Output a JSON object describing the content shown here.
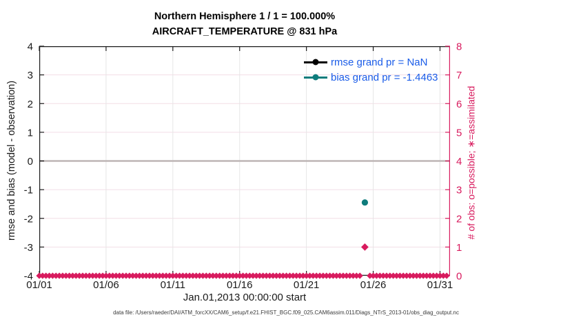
{
  "title": {
    "line1": "Northern Hemisphere 1 / 1 = 100.000%",
    "line2": "AIRCRAFT_TEMPERATURE @ 831 hPa"
  },
  "legend": {
    "text_color": "#1a5ce8",
    "items": [
      {
        "name": "rmse",
        "label": "rmse grand pr = NaN",
        "color": "#000000"
      },
      {
        "name": "bias",
        "label": "bias grand pr = -1.4463",
        "color": "#0e7c7c"
      }
    ]
  },
  "footer": {
    "text": "data file: /Users/raeder/DAI/ATM_forcXX/CAM6_setup/f.e21.FHIST_BGC.f09_025.CAM6assim.011/Diags_NTrS_2013-01/obs_diag_output.nc"
  },
  "chart_data": {
    "type": "line",
    "title": "Northern Hemisphere 1 / 1 = 100.000%",
    "subtitle": "AIRCRAFT_TEMPERATURE @ 831 hPa",
    "xlabel": "Jan.01,2013 00:00:00 start",
    "x_axis": {
      "tick_days": [
        0,
        5,
        10,
        15,
        20,
        25,
        30
      ],
      "tick_labels": [
        "01/01",
        "01/06",
        "01/11",
        "01/16",
        "01/21",
        "01/26",
        "01/31"
      ],
      "range_days": [
        0,
        30.75
      ],
      "grid_days": [
        5,
        10,
        15,
        20,
        25,
        30
      ]
    },
    "y_left": {
      "label": "rmse and bias (model - observation)",
      "range": [
        -4,
        4
      ],
      "ticks": [
        4,
        3,
        2,
        1,
        0,
        -1,
        -2,
        -3,
        -4
      ],
      "grid_values": [
        3,
        2,
        1,
        -1,
        -2,
        -3
      ],
      "color": "#1a1a1a"
    },
    "y_right": {
      "label": "# of obs: o=possible; ∗=assimilated",
      "range": [
        0,
        8
      ],
      "ticks": [
        8,
        7,
        6,
        5,
        4,
        3,
        2,
        1,
        0
      ],
      "color": "#d81b5e"
    },
    "zero_line": {
      "value": 0,
      "color": "#bdb5b5",
      "width": 2.4
    },
    "grid_color_h": "#f2dde6",
    "grid_color_v": "#e6e6e6",
    "series": [
      {
        "name": "rmse",
        "axis": "left",
        "marker": "circle",
        "color": "#000000",
        "points": []
      },
      {
        "name": "bias",
        "axis": "left",
        "marker": "circle",
        "color": "#0e7c7c",
        "points": [
          {
            "day": 24.375,
            "value": -1.4463
          }
        ]
      },
      {
        "name": "obs_count",
        "axis": "right",
        "marker": "diamond",
        "color": "#d81b5e",
        "baseline_value": 0,
        "start_day": 0,
        "end_day": 30.5,
        "step_days": 0.25,
        "skip_days": [
          24.25,
          24.5
        ],
        "raised_points": [
          {
            "day": 24.375,
            "value": 1
          }
        ]
      }
    ]
  }
}
